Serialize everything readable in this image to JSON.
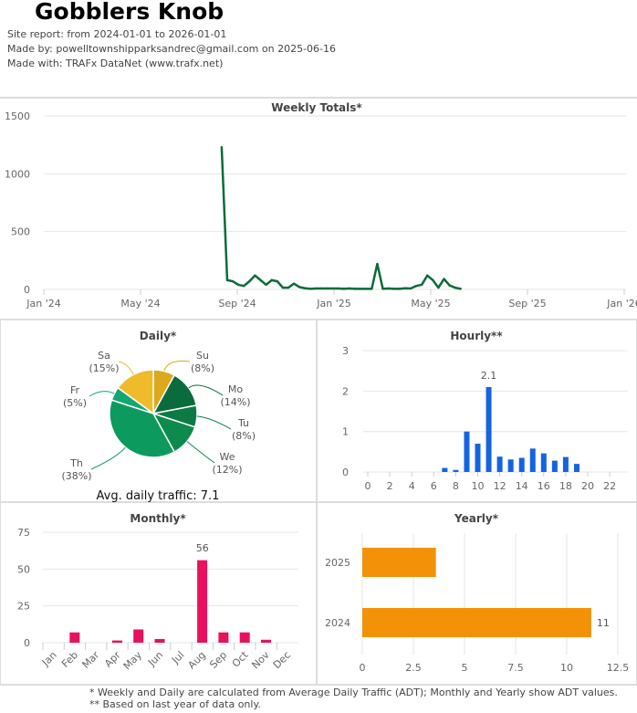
{
  "header": {
    "title": "Gobblers Knob",
    "site_report": "Site report: from 2024-01-01 to 2026-01-01",
    "made_by": "Made by: powelltownshipparksandrec@gmail.com on 2025-06-16",
    "made_with": "Made with: TRAFx DataNet (www.trafx.net)"
  },
  "footer": {
    "note1": "* Weekly and Daily are calculated from Average Daily Traffic (ADT); Monthly and Yearly show ADT values.",
    "note2": "** Based on last year of data only."
  },
  "chart_data": [
    {
      "type": "line",
      "title": "Weekly Totals*",
      "start": "2024-08-12",
      "interval_days": 7,
      "values": [
        1230,
        80,
        70,
        40,
        30,
        70,
        120,
        80,
        40,
        80,
        70,
        15,
        15,
        50,
        20,
        10,
        5,
        8,
        8,
        8,
        8,
        8,
        5,
        8,
        5,
        5,
        5,
        5,
        220,
        5,
        8,
        5,
        5,
        10,
        8,
        30,
        40,
        120,
        80,
        15,
        90,
        35,
        15,
        5
      ],
      "ylim": [
        0,
        1500
      ],
      "yticks": [
        "0",
        "500",
        "1000",
        "1500"
      ],
      "xticks": [
        "Jan '24",
        "May '24",
        "Sep '24",
        "Jan '25",
        "May '25",
        "Sep '25",
        "Jan '26"
      ],
      "color": "#0b6b3a"
    },
    {
      "type": "pie",
      "title": "Daily*",
      "categories": [
        "Su",
        "Mo",
        "Tu",
        "We",
        "Th",
        "Fr",
        "Sa"
      ],
      "values": [
        8,
        14,
        8,
        12,
        38,
        5,
        15
      ],
      "labels": [
        "(8%)",
        "(14%)",
        "(8%)",
        "(12%)",
        "(38%)",
        "(5%)",
        "(15%)"
      ],
      "colors": [
        "#dba81e",
        "#0a6b3c",
        "#0c7a44",
        "#0e8a4e",
        "#0d9a5e",
        "#12a873",
        "#efbb2b"
      ],
      "annotation": "Avg. daily traffic: 7.1"
    },
    {
      "type": "bar",
      "title": "Hourly**",
      "categories": [
        "0",
        "1",
        "2",
        "3",
        "4",
        "5",
        "6",
        "7",
        "8",
        "9",
        "10",
        "11",
        "12",
        "13",
        "14",
        "15",
        "16",
        "17",
        "18",
        "19",
        "20",
        "21",
        "22",
        "23"
      ],
      "values": [
        0,
        0,
        0,
        0,
        0,
        0,
        0,
        0.1,
        0.05,
        1.0,
        0.7,
        2.1,
        0.38,
        0.31,
        0.35,
        0.58,
        0.46,
        0.28,
        0.37,
        0.2,
        0,
        0,
        0,
        0
      ],
      "ylim": [
        0,
        3
      ],
      "yticks": [
        "0",
        "1",
        "2",
        "3"
      ],
      "xticks": [
        "0",
        "2",
        "4",
        "6",
        "8",
        "10",
        "12",
        "14",
        "16",
        "18",
        "20",
        "22"
      ],
      "data_label": "2.1",
      "color": "#1464e0"
    },
    {
      "type": "bar",
      "title": "Monthly*",
      "categories": [
        "Jan",
        "Feb",
        "Mar",
        "Apr",
        "May",
        "Jun",
        "Jul",
        "Aug",
        "Sep",
        "Oct",
        "Nov",
        "Dec"
      ],
      "values": [
        0,
        7,
        0,
        1.5,
        9,
        2.5,
        0,
        56,
        7,
        7,
        2,
        0
      ],
      "ylim": [
        0,
        75
      ],
      "yticks": [
        "0",
        "25",
        "50",
        "75"
      ],
      "data_label": "56",
      "color": "#e8105f"
    },
    {
      "type": "bar",
      "orientation": "horizontal",
      "title": "Yearly*",
      "categories": [
        "2025",
        "2024"
      ],
      "values": [
        3.6,
        11.2
      ],
      "xlim": [
        0,
        12.5
      ],
      "xticks": [
        "0",
        "2.5",
        "5",
        "7.5",
        "10",
        "12.5"
      ],
      "data_label": "11",
      "color": "#f39208"
    }
  ]
}
